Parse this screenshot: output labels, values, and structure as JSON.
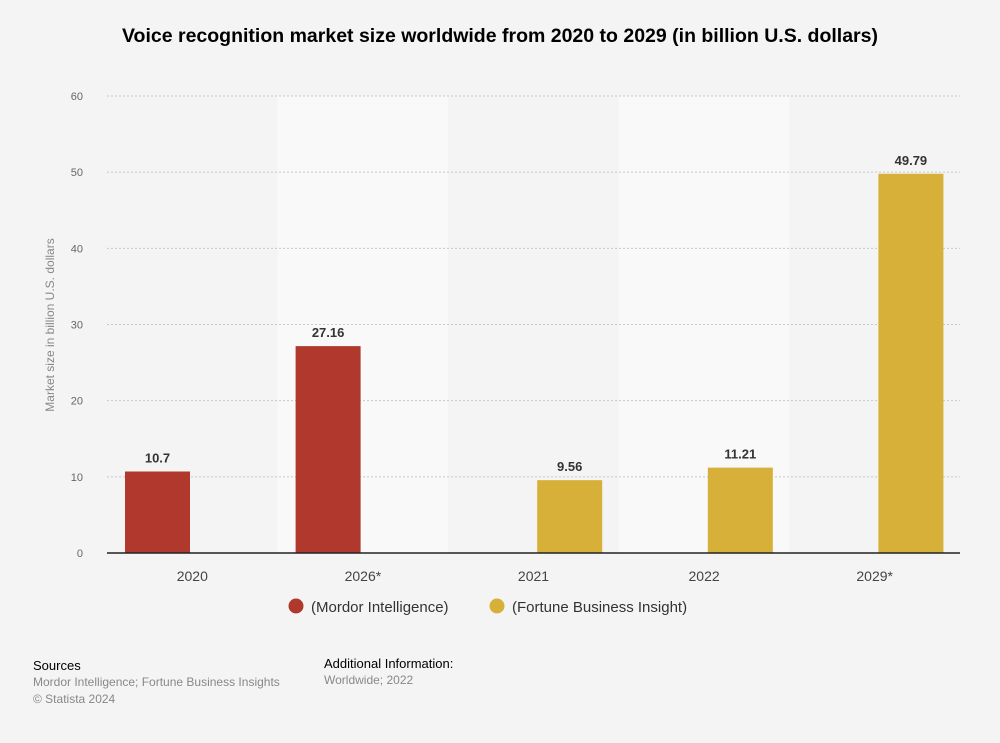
{
  "chart_data": {
    "type": "bar",
    "title": "Voice recognition market size worldwide from 2020 to 2029 (in billion U.S. dollars)",
    "xlabel": "",
    "ylabel": "Market size in billion U.S. dollars",
    "ylim": [
      0,
      60
    ],
    "yticks": [
      "0",
      "10",
      "20",
      "30",
      "40",
      "50",
      "60"
    ],
    "grid": true,
    "legend_position": "bottom",
    "categories": [
      "2020",
      "2026*",
      "2021",
      "2022",
      "2029*"
    ],
    "series": [
      {
        "name": "(Mordor Intelligence)",
        "color": "#b0382d",
        "values": [
          10.7,
          27.16,
          null,
          null,
          null
        ],
        "labels": [
          "10.7",
          "27.16",
          null,
          null,
          null
        ]
      },
      {
        "name": "(Fortune Business Insight)",
        "color": "#d6b038",
        "values": [
          null,
          null,
          9.56,
          11.21,
          49.79
        ],
        "labels": [
          null,
          null,
          "9.56",
          "11.21",
          "49.79"
        ]
      }
    ]
  },
  "footer": {
    "sources_heading": "Sources",
    "sources_text": "Mordor Intelligence; Fortune Business Insights",
    "copyright": "© Statista 2024",
    "additional_heading": "Additional Information:",
    "additional_text": "Worldwide; 2022"
  }
}
